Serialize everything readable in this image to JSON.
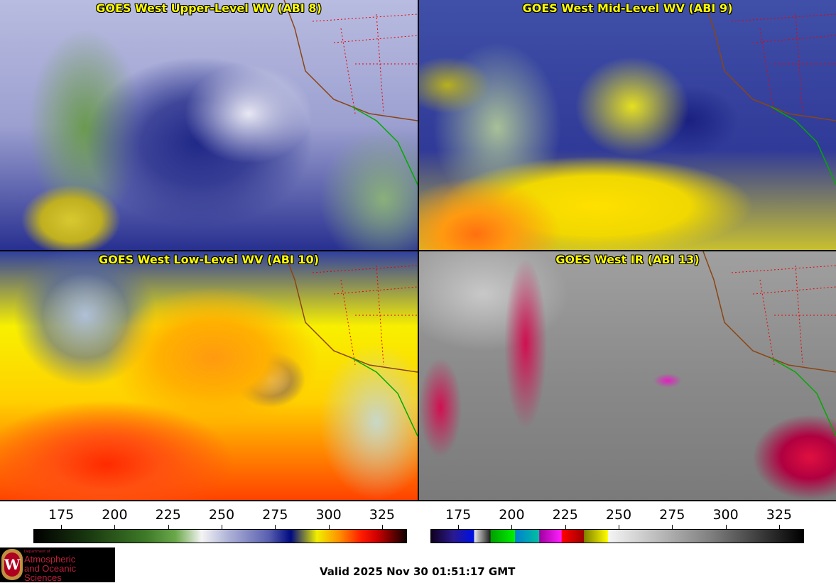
{
  "panels": [
    {
      "title": "GOES West Upper-Level WV (ABI 8)"
    },
    {
      "title": "GOES West Mid-Level WV (ABI 9)"
    },
    {
      "title": "GOES West Low-Level WV (ABI 10)"
    },
    {
      "title": "GOES West IR (ABI 13)"
    }
  ],
  "colorbars": [
    {
      "name": "water-vapor",
      "min": 162,
      "max": 336,
      "ticks": [
        175,
        200,
        225,
        250,
        275,
        300,
        325
      ]
    },
    {
      "name": "infrared",
      "min": 162,
      "max": 336,
      "ticks": [
        175,
        200,
        225,
        250,
        275,
        300,
        325
      ]
    }
  ],
  "logo": {
    "dept": "Department of",
    "name_line1": "Atmospheric",
    "name_line2": "and Oceanic Sciences",
    "letter": "W"
  },
  "valid_time": "Valid 2025 Nov 30 01:51:17 GMT"
}
